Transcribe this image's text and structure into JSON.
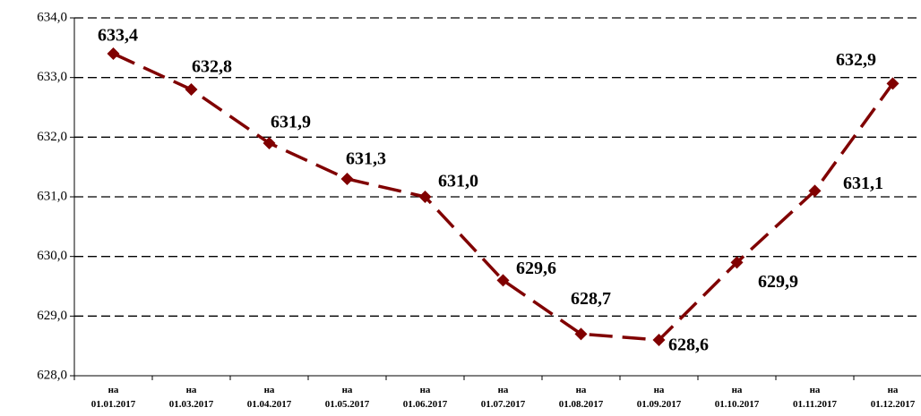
{
  "chart_data": {
    "type": "line",
    "categories": [
      "на\n01.01.2017",
      "на\n01.03.2017",
      "на\n01.04.2017",
      "на\n01.05.2017",
      "на\n01.06.2017",
      "на\n01.07.2017",
      "на\n01.08.2017",
      "на\n01.09.2017",
      "на\n01.10.2017",
      "на\n01.11.2017",
      "на\n01.12.2017"
    ],
    "series": [
      {
        "color": "#800000",
        "values": [
          633.4,
          632.8,
          631.9,
          631.3,
          631.0,
          629.6,
          628.7,
          628.6,
          629.9,
          631.1,
          632.9
        ],
        "value_labels": [
          "633,4",
          "632,8",
          "631,9",
          "631,3",
          "631,0",
          "629,6",
          "628,7",
          "628,6",
          "629,9",
          "631,1",
          "632,9"
        ]
      }
    ],
    "ylim": [
      628,
      634
    ],
    "yticks": [
      {
        "value": 628,
        "label": "628,0"
      },
      {
        "value": 629,
        "label": "629,0"
      },
      {
        "value": 630,
        "label": "630,0"
      },
      {
        "value": 631,
        "label": "631,0"
      },
      {
        "value": 632,
        "label": "632,0"
      },
      {
        "value": 633,
        "label": "633,0"
      },
      {
        "value": 634,
        "label": "634,0"
      }
    ],
    "grid": true
  }
}
